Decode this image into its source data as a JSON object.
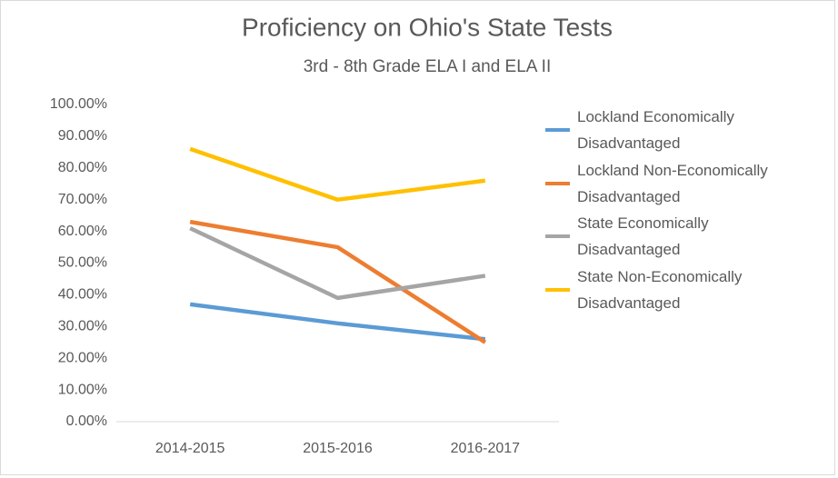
{
  "chart_data": {
    "type": "line",
    "title": "Proficiency on Ohio's State Tests",
    "subtitle": "3rd - 8th Grade ELA I and ELA II",
    "categories": [
      "2014-2015",
      "2015-2016",
      "2016-2017"
    ],
    "series": [
      {
        "name": "Lockland Economically Disadvantaged",
        "color": "#5b9bd5",
        "values": [
          37,
          31,
          26
        ]
      },
      {
        "name": "Lockland Non-Economically Disadvantaged",
        "color": "#ed7d31",
        "values": [
          63,
          55,
          25
        ]
      },
      {
        "name": "State Economically Disadvantaged",
        "color": "#a5a5a5",
        "values": [
          61,
          39,
          46
        ]
      },
      {
        "name": "State Non-Economically Disadvantaged",
        "color": "#ffc000",
        "values": [
          86,
          70,
          76
        ]
      }
    ],
    "ylim": [
      0,
      100
    ],
    "yticks": [
      {
        "value": 0,
        "label": "0.00%"
      },
      {
        "value": 10,
        "label": "10.00%"
      },
      {
        "value": 20,
        "label": "20.00%"
      },
      {
        "value": 30,
        "label": "30.00%"
      },
      {
        "value": 40,
        "label": "40.00%"
      },
      {
        "value": 50,
        "label": "50.00%"
      },
      {
        "value": 60,
        "label": "60.00%"
      },
      {
        "value": 70,
        "label": "70.00%"
      },
      {
        "value": 80,
        "label": "80.00%"
      },
      {
        "value": 90,
        "label": "90.00%"
      },
      {
        "value": 100,
        "label": "100.00%"
      }
    ],
    "grid": false,
    "legend": "right"
  }
}
